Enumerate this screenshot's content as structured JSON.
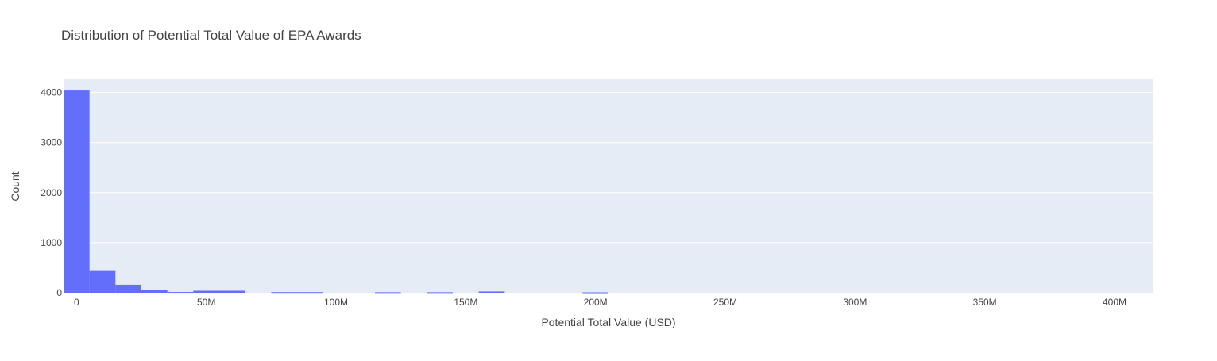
{
  "chart_data": {
    "type": "bar",
    "title": "Distribution of Potential Total Value of EPA Awards",
    "xlabel": "Potential Total Value (USD)",
    "ylabel": "Count",
    "xlim": [
      -5000000,
      415000000
    ],
    "ylim": [
      0,
      4263
    ],
    "bin_width": 10000000,
    "bins": [
      {
        "x0": -5000000,
        "x1": 5000000,
        "count": 4040
      },
      {
        "x0": 5000000,
        "x1": 15000000,
        "count": 450
      },
      {
        "x0": 15000000,
        "x1": 25000000,
        "count": 160
      },
      {
        "x0": 25000000,
        "x1": 35000000,
        "count": 55
      },
      {
        "x0": 35000000,
        "x1": 45000000,
        "count": 15
      },
      {
        "x0": 45000000,
        "x1": 55000000,
        "count": 40
      },
      {
        "x0": 55000000,
        "x1": 65000000,
        "count": 40
      },
      {
        "x0": 75000000,
        "x1": 85000000,
        "count": 12
      },
      {
        "x0": 85000000,
        "x1": 95000000,
        "count": 12
      },
      {
        "x0": 115000000,
        "x1": 125000000,
        "count": 10
      },
      {
        "x0": 135000000,
        "x1": 145000000,
        "count": 10
      },
      {
        "x0": 155000000,
        "x1": 165000000,
        "count": 25
      },
      {
        "x0": 195000000,
        "x1": 205000000,
        "count": 8
      }
    ],
    "x_ticks": [
      {
        "value": 0,
        "label": "0"
      },
      {
        "value": 50000000,
        "label": "50M"
      },
      {
        "value": 100000000,
        "label": "100M"
      },
      {
        "value": 150000000,
        "label": "150M"
      },
      {
        "value": 200000000,
        "label": "200M"
      },
      {
        "value": 250000000,
        "label": "250M"
      },
      {
        "value": 300000000,
        "label": "300M"
      },
      {
        "value": 350000000,
        "label": "350M"
      },
      {
        "value": 400000000,
        "label": "400M"
      }
    ],
    "y_ticks": [
      {
        "value": 0,
        "label": "0"
      },
      {
        "value": 1000,
        "label": "1000"
      },
      {
        "value": 2000,
        "label": "2000"
      },
      {
        "value": 3000,
        "label": "3000"
      },
      {
        "value": 4000,
        "label": "4000"
      }
    ],
    "grid": true,
    "colors": {
      "bar": "#636efa",
      "plot_bg": "#e5ecf6",
      "grid": "#ffffff",
      "title": "#444444",
      "tick": "#444444"
    }
  }
}
